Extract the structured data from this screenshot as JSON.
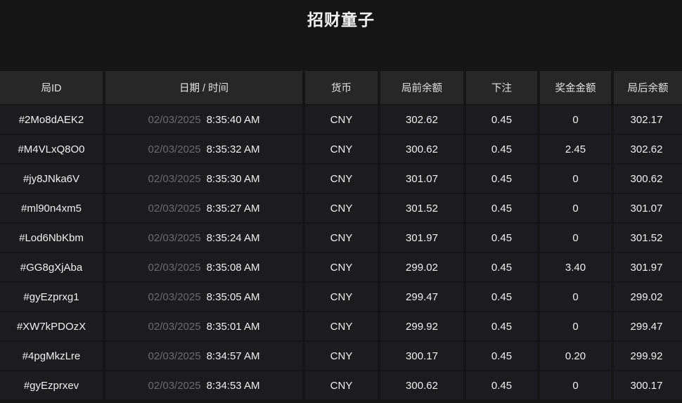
{
  "title": "招财童子",
  "colors": {
    "page_background": "#151515",
    "header_background": "#272727",
    "row_background": "#1c1c1e",
    "primary_text": "#f0f0f0",
    "date_muted_text": "#6b6b6b"
  },
  "table": {
    "columns": [
      {
        "key": "id",
        "label": "局ID"
      },
      {
        "key": "datetime",
        "label": "日期 / 时间"
      },
      {
        "key": "currency",
        "label": "货币"
      },
      {
        "key": "balance_before",
        "label": "局前余额"
      },
      {
        "key": "bet",
        "label": "下注"
      },
      {
        "key": "prize",
        "label": "奖金金额"
      },
      {
        "key": "balance_after",
        "label": "局后余额"
      }
    ],
    "rows": [
      {
        "id": "#2Mo8dAEK2",
        "date": "02/03/2025",
        "time": "8:35:40 AM",
        "currency": "CNY",
        "balance_before": "302.62",
        "bet": "0.45",
        "prize": "0",
        "balance_after": "302.17"
      },
      {
        "id": "#M4VLxQ8O0",
        "date": "02/03/2025",
        "time": "8:35:32 AM",
        "currency": "CNY",
        "balance_before": "300.62",
        "bet": "0.45",
        "prize": "2.45",
        "balance_after": "302.62"
      },
      {
        "id": "#jy8JNka6V",
        "date": "02/03/2025",
        "time": "8:35:30 AM",
        "currency": "CNY",
        "balance_before": "301.07",
        "bet": "0.45",
        "prize": "0",
        "balance_after": "300.62"
      },
      {
        "id": "#ml90n4xm5",
        "date": "02/03/2025",
        "time": "8:35:27 AM",
        "currency": "CNY",
        "balance_before": "301.52",
        "bet": "0.45",
        "prize": "0",
        "balance_after": "301.07"
      },
      {
        "id": "#Lod6NbKbm",
        "date": "02/03/2025",
        "time": "8:35:24 AM",
        "currency": "CNY",
        "balance_before": "301.97",
        "bet": "0.45",
        "prize": "0",
        "balance_after": "301.52"
      },
      {
        "id": "#GG8gXjAba",
        "date": "02/03/2025",
        "time": "8:35:08 AM",
        "currency": "CNY",
        "balance_before": "299.02",
        "bet": "0.45",
        "prize": "3.40",
        "balance_after": "301.97"
      },
      {
        "id": "#gyEzprxg1",
        "date": "02/03/2025",
        "time": "8:35:05 AM",
        "currency": "CNY",
        "balance_before": "299.47",
        "bet": "0.45",
        "prize": "0",
        "balance_after": "299.02"
      },
      {
        "id": "#XW7kPDOzX",
        "date": "02/03/2025",
        "time": "8:35:01 AM",
        "currency": "CNY",
        "balance_before": "299.92",
        "bet": "0.45",
        "prize": "0",
        "balance_after": "299.47"
      },
      {
        "id": "#4pgMkzLre",
        "date": "02/03/2025",
        "time": "8:34:57 AM",
        "currency": "CNY",
        "balance_before": "300.17",
        "bet": "0.45",
        "prize": "0.20",
        "balance_after": "299.92"
      },
      {
        "id": "#gyEzprxev",
        "date": "02/03/2025",
        "time": "8:34:53 AM",
        "currency": "CNY",
        "balance_before": "300.62",
        "bet": "0.45",
        "prize": "0",
        "balance_after": "300.17"
      }
    ]
  }
}
